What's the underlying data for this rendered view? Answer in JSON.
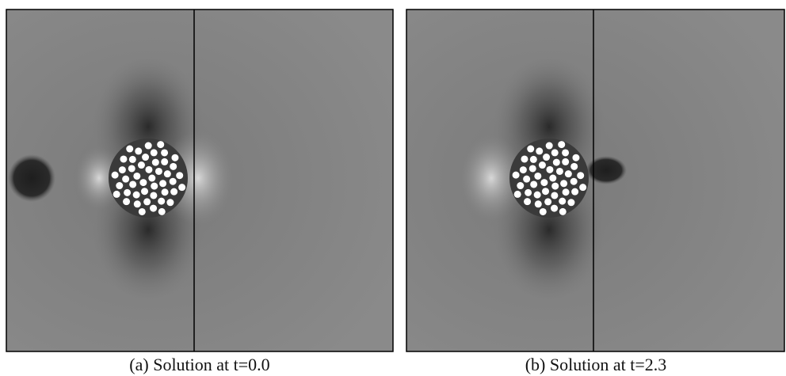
{
  "panels": [
    {
      "caption": "(a) Solution at t=0.0"
    },
    {
      "caption": "(b) Solution at t=2.3"
    }
  ]
}
